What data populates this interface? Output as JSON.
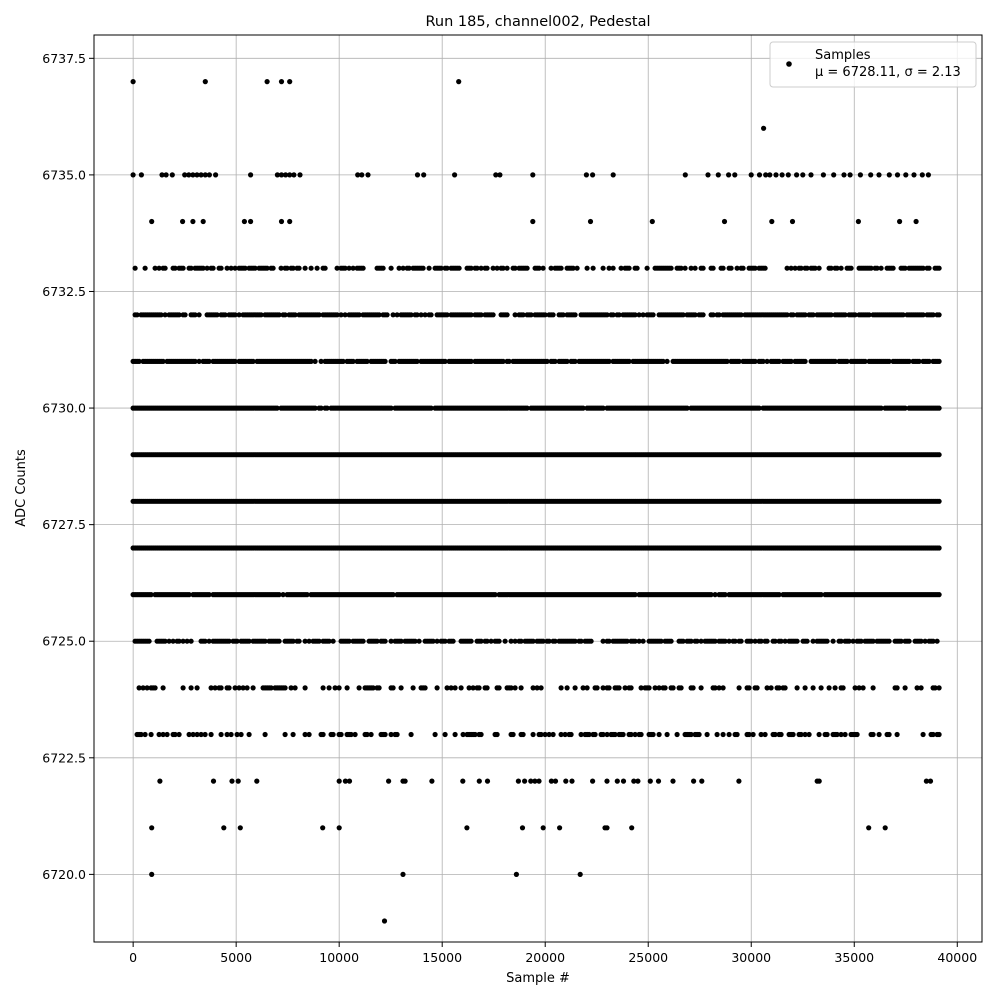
{
  "chart_data": {
    "type": "scatter",
    "title": "Run 185, channel002, Pedestal",
    "xlabel": "Sample #",
    "ylabel": "ADC Counts",
    "xlim": [
      -1900,
      41200
    ],
    "ylim": [
      6718.55,
      6738.0
    ],
    "xticks": [
      0,
      5000,
      10000,
      15000,
      20000,
      25000,
      30000,
      35000,
      40000
    ],
    "yticks": [
      6720.0,
      6722.5,
      6725.0,
      6727.5,
      6730.0,
      6732.5,
      6735.0,
      6737.5
    ],
    "grid": true,
    "legend": {
      "placement": "top-right",
      "title_line": "Samples",
      "stats_line": "μ = 6728.11, σ = 2.13"
    },
    "series": [
      {
        "name": "Samples",
        "color": "#000000",
        "marker": "circle",
        "x_range": [
          0,
          39200
        ],
        "dense_levels": [
          {
            "y": 6733,
            "density": 0.55
          },
          {
            "y": 6732,
            "density": 0.8
          },
          {
            "y": 6731,
            "density": 0.9
          },
          {
            "y": 6730,
            "density": 0.97
          },
          {
            "y": 6729,
            "density": 1.0
          },
          {
            "y": 6728,
            "density": 1.0
          },
          {
            "y": 6727,
            "density": 1.0
          },
          {
            "y": 6726,
            "density": 0.95
          },
          {
            "y": 6725,
            "density": 0.75
          },
          {
            "y": 6724,
            "density": 0.4
          },
          {
            "y": 6723,
            "density": 0.35
          }
        ],
        "outliers": [
          {
            "y": 6737,
            "x": [
              0,
              3500,
              6500,
              7200,
              7600,
              15800
            ]
          },
          {
            "y": 6736,
            "x": [
              30600
            ]
          },
          {
            "y": 6735,
            "x": [
              0,
              400,
              1400,
              1600,
              1900,
              2500,
              2700,
              2900,
              3100,
              3300,
              3500,
              3700,
              4000,
              5700,
              7000,
              7200,
              7400,
              7600,
              7800,
              8100,
              10900,
              11100,
              11400,
              13800,
              14100,
              15600,
              17600,
              17800,
              19400,
              22000,
              22300,
              23300,
              26800,
              27900,
              28400,
              28900,
              29200,
              30000,
              30400,
              30700,
              30900,
              31200,
              31500,
              31800,
              32200,
              32500,
              32900,
              33500,
              34000,
              34500,
              34800,
              35300,
              35800,
              36200,
              36700,
              37100,
              37500,
              37900,
              38300,
              38600
            ]
          },
          {
            "y": 6734,
            "x": [
              900,
              2400,
              2900,
              3400,
              5400,
              5700,
              7200,
              7600,
              19400,
              22200,
              25200,
              28700,
              31000,
              32000,
              35200,
              37200,
              38000
            ]
          },
          {
            "y": 6722,
            "x": [
              1300,
              3900,
              4800,
              5100,
              6000,
              10000,
              10300,
              10500,
              12400,
              13100,
              13200,
              14500,
              16000,
              16800,
              17200,
              18700,
              19000,
              19300,
              19500,
              19700,
              20300,
              20500,
              21000,
              21300,
              22300,
              23000,
              23500,
              23800,
              24300,
              24500,
              25100,
              25500,
              26200,
              27200,
              27600,
              29400,
              33200,
              33300,
              38500,
              38700
            ]
          },
          {
            "y": 6721,
            "x": [
              900,
              4400,
              5200,
              9200,
              10000,
              16200,
              18900,
              19900,
              20700,
              22900,
              23000,
              24200,
              35700,
              36500
            ]
          },
          {
            "y": 6720,
            "x": [
              900,
              13100,
              18600,
              21700
            ]
          },
          {
            "y": 6719,
            "x": [
              12200
            ]
          }
        ]
      }
    ]
  }
}
